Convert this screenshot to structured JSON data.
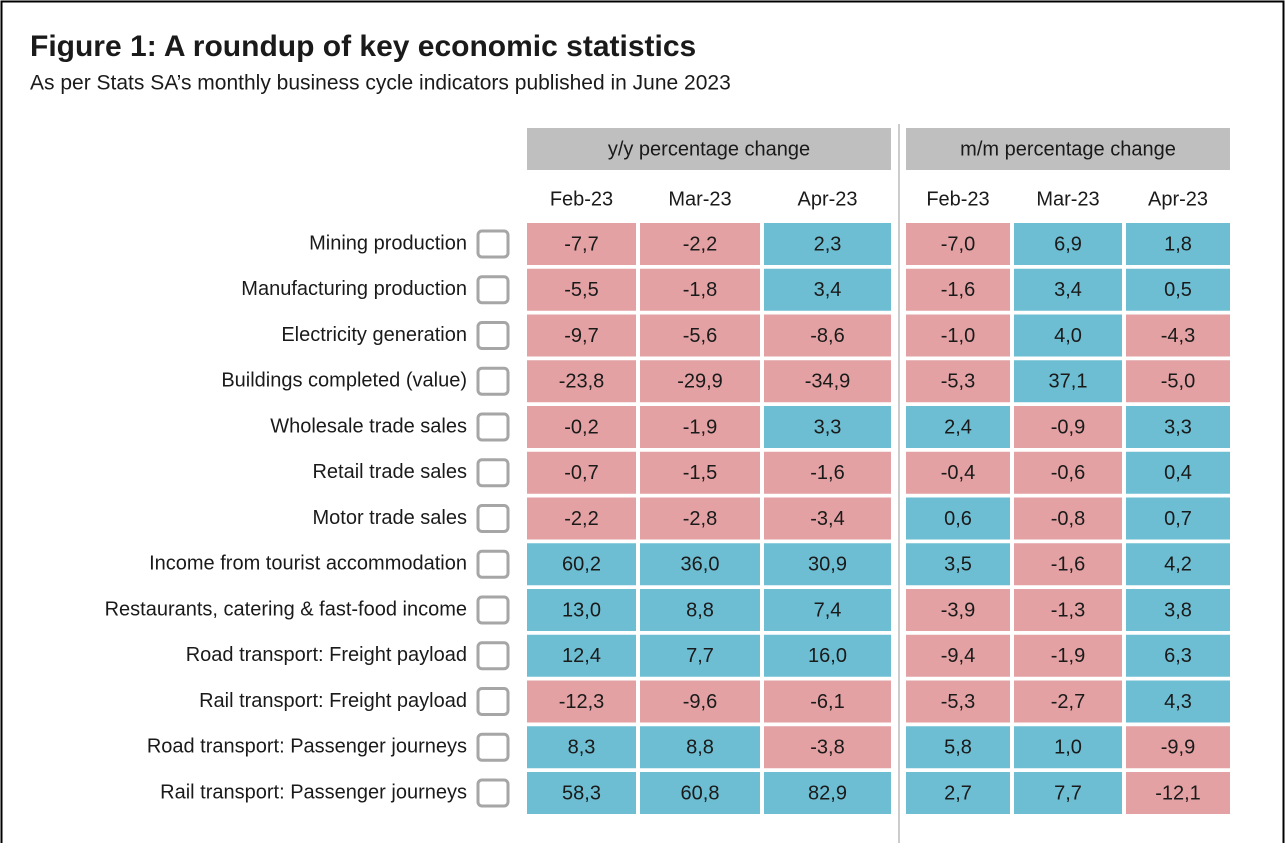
{
  "header": {
    "title": "Figure 1: A roundup of key economic statistics",
    "subtitle": "As per Stats SA’s monthly business cycle indicators published in June 2023"
  },
  "table": {
    "groups": [
      "y/y percentage change",
      "m/m percentage change"
    ],
    "columns": [
      "Feb-23",
      "Mar-23",
      "Apr-23",
      "Feb-23",
      "Mar-23",
      "Apr-23"
    ],
    "rows": [
      {
        "label": "Mining production",
        "cells": [
          "-7,7",
          "-2,2",
          "2,3",
          "-7,0",
          "6,9",
          "1,8"
        ]
      },
      {
        "label": "Manufacturing production",
        "cells": [
          "-5,5",
          "-1,8",
          "3,4",
          "-1,6",
          "3,4",
          "0,5"
        ]
      },
      {
        "label": "Electricity generation",
        "cells": [
          "-9,7",
          "-5,6",
          "-8,6",
          "-1,0",
          "4,0",
          "-4,3"
        ]
      },
      {
        "label": "Buildings completed (value)",
        "cells": [
          "-23,8",
          "-29,9",
          "-34,9",
          "-5,3",
          "37,1",
          "-5,0"
        ]
      },
      {
        "label": "Wholesale trade sales",
        "cells": [
          "-0,2",
          "-1,9",
          "3,3",
          "2,4",
          "-0,9",
          "3,3"
        ]
      },
      {
        "label": "Retail trade sales",
        "cells": [
          "-0,7",
          "-1,5",
          "-1,6",
          "-0,4",
          "-0,6",
          "0,4"
        ]
      },
      {
        "label": "Motor trade sales",
        "cells": [
          "-2,2",
          "-2,8",
          "-3,4",
          "0,6",
          "-0,8",
          "0,7"
        ]
      },
      {
        "label": "Income from tourist accommodation",
        "cells": [
          "60,2",
          "36,0",
          "30,9",
          "3,5",
          "-1,6",
          "4,2"
        ]
      },
      {
        "label": "Restaurants, catering & fast-food income",
        "cells": [
          "13,0",
          "8,8",
          "7,4",
          "-3,9",
          "-1,3",
          "3,8"
        ]
      },
      {
        "label": "Road transport: Freight payload",
        "cells": [
          "12,4",
          "7,7",
          "16,0",
          "-9,4",
          "-1,9",
          "6,3"
        ]
      },
      {
        "label": "Rail transport: Freight payload",
        "cells": [
          "-12,3",
          "-9,6",
          "-6,1",
          "-5,3",
          "-2,7",
          "4,3"
        ]
      },
      {
        "label": "Road transport: Passenger journeys",
        "cells": [
          "8,3",
          "8,8",
          "-3,8",
          "5,8",
          "1,0",
          "-9,9"
        ]
      },
      {
        "label": "Rail transport: Passenger journeys",
        "cells": [
          "58,3",
          "60,8",
          "82,9",
          "2,7",
          "7,7",
          "-12,1"
        ]
      }
    ]
  }
}
